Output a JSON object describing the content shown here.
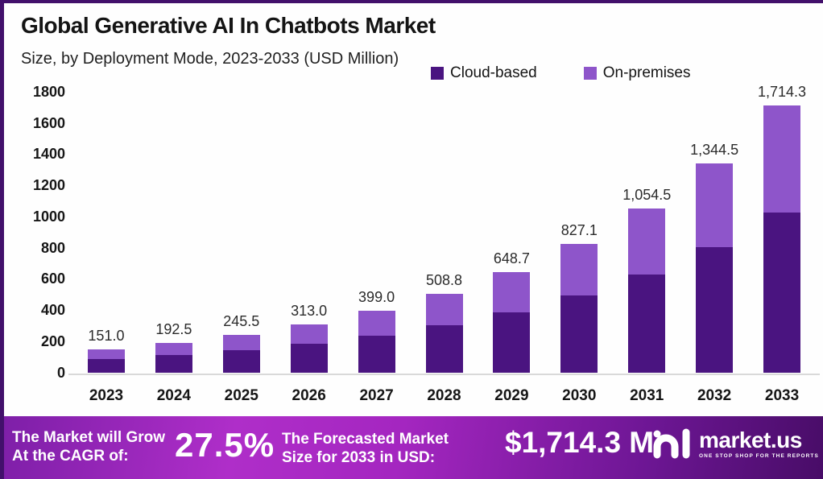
{
  "header": {
    "title": "Global Generative AI In Chatbots Market",
    "subtitle": "Size, by Deployment Mode, 2023-2033 (USD Million)"
  },
  "legend": [
    {
      "label": "Cloud-based",
      "color": "#4a1480"
    },
    {
      "label": "On-premises",
      "color": "#8e55ca"
    }
  ],
  "chart_data": {
    "type": "bar",
    "stacked": true,
    "title": "Global Generative AI In Chatbots Market",
    "subtitle": "Size, by Deployment Mode, 2023-2033 (USD Million)",
    "unit": "USD Million",
    "categories": [
      "2023",
      "2024",
      "2025",
      "2026",
      "2027",
      "2028",
      "2029",
      "2030",
      "2031",
      "2032",
      "2033"
    ],
    "series": [
      {
        "name": "Cloud-based",
        "color": "#4a1480",
        "values": [
          90.6,
          115.5,
          147.3,
          187.8,
          239.4,
          305.3,
          389.2,
          496.3,
          632.7,
          806.7,
          1028.6
        ]
      },
      {
        "name": "On-premises",
        "color": "#8e55ca",
        "values": [
          60.4,
          77.0,
          98.2,
          125.2,
          159.6,
          203.5,
          259.5,
          330.8,
          421.8,
          537.8,
          685.7
        ]
      }
    ],
    "totals": [
      151.0,
      192.5,
      245.5,
      313.0,
      399.0,
      508.8,
      648.7,
      827.1,
      1054.5,
      1344.5,
      1714.3
    ],
    "total_labels": [
      "151.0",
      "192.5",
      "245.5",
      "313.0",
      "399.0",
      "508.8",
      "648.7",
      "827.1",
      "1,054.5",
      "1,344.5",
      "1,714.3"
    ],
    "ylim": [
      0,
      1800
    ],
    "yticks": [
      0,
      200,
      400,
      600,
      800,
      1000,
      1200,
      1400,
      1600,
      1800
    ],
    "grid": false,
    "legend_position": "top-right"
  },
  "footer": {
    "grow_line1": "The Market will Grow",
    "grow_line2": "At the CAGR of:",
    "cagr": "27.5%",
    "forecast_line1": "The Forecasted Market",
    "forecast_line2": "Size for 2033 in USD:",
    "forecast_value": "$1,714.3 M",
    "brand": "market.us",
    "brand_tagline": "ONE STOP SHOP FOR THE REPORTS"
  },
  "colors": {
    "border": "#42106b",
    "background": "#fefefe",
    "cloud_based": "#4a1480",
    "on_premises": "#8e55ca",
    "axis_line": "#d9d9d9",
    "footer_gradient_start": "#7e1fa8",
    "footer_gradient_mid": "#af2ec9",
    "footer_gradient_end": "#470c66"
  }
}
